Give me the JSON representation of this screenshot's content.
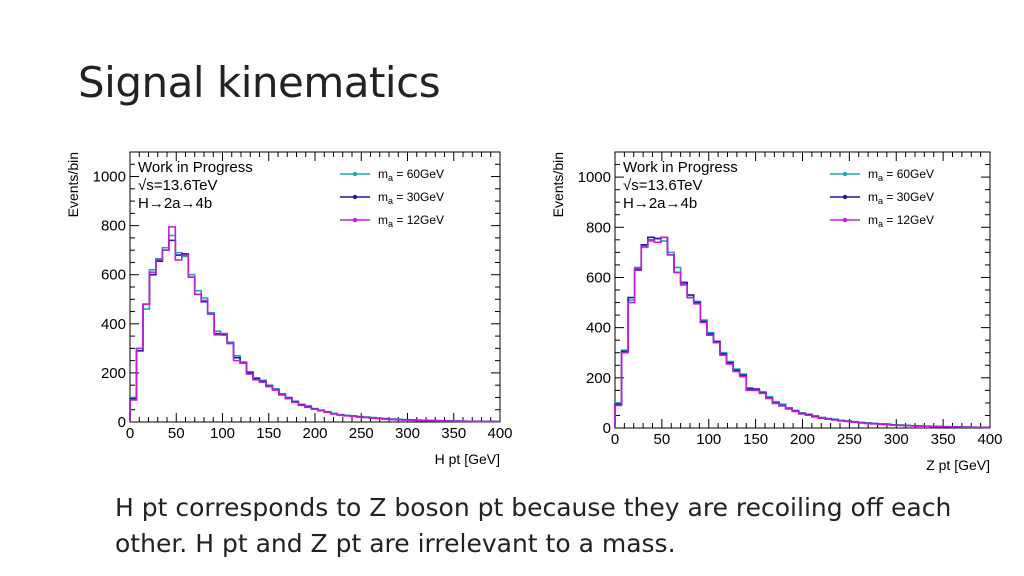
{
  "slide": {
    "title": "Signal kinematics",
    "caption": "H pt corresponds to Z boson pt because they are recoiling off each other. H pt and Z pt are irrelevant to a mass."
  },
  "colors": {
    "m60": "#1aa7b8",
    "m30": "#1a1aa8",
    "m12": "#c21ed6"
  },
  "chart_data": [
    {
      "type": "histogram",
      "xlabel": "H pt [GeV]",
      "ylabel": "Events/bin",
      "xlim": [
        0,
        400
      ],
      "ylim": [
        0,
        1100
      ],
      "xticks": [
        0,
        50,
        100,
        150,
        200,
        250,
        300,
        350,
        400
      ],
      "yticks": [
        0,
        200,
        400,
        600,
        800,
        1000
      ],
      "annotation": [
        "Work in Progress",
        "√s=13.6TeV",
        "H→2a→4b"
      ],
      "legend_position": "top-right",
      "bin_edges": [
        0,
        7,
        14,
        21,
        28,
        35,
        42,
        49,
        56,
        63,
        70,
        77,
        84,
        91,
        98,
        105,
        112,
        119,
        126,
        133,
        140,
        147,
        154,
        161,
        168,
        175,
        182,
        189,
        196,
        203,
        210,
        217,
        224,
        231,
        238,
        245,
        252,
        259,
        266,
        273,
        280,
        287,
        294,
        301,
        308,
        315,
        322,
        329,
        336,
        343,
        350,
        357,
        364,
        371,
        378,
        385,
        392,
        399
      ],
      "series": [
        {
          "name": "m_a = 60GeV",
          "legend_main": "m",
          "legend_sub": "a",
          "legend_rest": " = 60GeV",
          "color_key": "m60",
          "values": [
            100,
            300,
            460,
            620,
            665,
            710,
            760,
            690,
            675,
            600,
            535,
            505,
            445,
            370,
            360,
            325,
            270,
            245,
            205,
            180,
            170,
            150,
            135,
            115,
            100,
            85,
            72,
            65,
            55,
            48,
            42,
            35,
            30,
            27,
            25,
            22,
            20,
            18,
            15,
            14,
            12,
            10,
            10,
            9,
            8,
            7,
            6,
            6,
            5,
            5,
            4,
            4,
            3,
            3,
            2,
            2,
            2
          ]
        },
        {
          "name": "m_a = 30GeV",
          "legend_main": "m",
          "legend_sub": "a",
          "legend_rest": " = 30GeV",
          "color_key": "m30",
          "values": [
            95,
            290,
            480,
            600,
            655,
            700,
            740,
            680,
            685,
            590,
            520,
            490,
            440,
            360,
            355,
            320,
            262,
            240,
            200,
            176,
            166,
            146,
            132,
            112,
            97,
            82,
            70,
            63,
            53,
            47,
            41,
            34,
            29,
            26,
            24,
            21,
            19,
            17,
            15,
            13,
            11,
            10,
            9,
            8,
            7,
            6,
            6,
            5,
            5,
            4,
            4,
            3,
            3,
            3,
            2,
            2,
            2
          ]
        },
        {
          "name": "m_a = 12GeV",
          "legend_main": "m",
          "legend_sub": "a",
          "legend_rest": " = 12GeV",
          "color_key": "m12",
          "values": [
            90,
            300,
            480,
            610,
            660,
            700,
            795,
            660,
            680,
            590,
            520,
            495,
            440,
            355,
            360,
            320,
            250,
            240,
            195,
            172,
            162,
            144,
            130,
            110,
            95,
            80,
            68,
            60,
            52,
            46,
            40,
            33,
            28,
            25,
            23,
            20,
            18,
            16,
            14,
            12,
            10,
            9,
            8,
            7,
            6,
            6,
            5,
            5,
            4,
            4,
            3,
            3,
            3,
            2,
            2,
            2,
            2
          ]
        }
      ]
    },
    {
      "type": "histogram",
      "xlabel": "Z pt [GeV]",
      "ylabel": "Events/bin",
      "xlim": [
        0,
        400
      ],
      "ylim": [
        0,
        1100
      ],
      "xticks": [
        0,
        50,
        100,
        150,
        200,
        250,
        300,
        350,
        400
      ],
      "yticks": [
        0,
        200,
        400,
        600,
        800,
        1000
      ],
      "annotation": [
        "Work in Progress",
        "√s=13.6TeV",
        "H→2a→4b"
      ],
      "legend_position": "top-right",
      "bin_edges": [
        0,
        7,
        14,
        21,
        28,
        35,
        42,
        49,
        56,
        63,
        70,
        77,
        84,
        91,
        98,
        105,
        112,
        119,
        126,
        133,
        140,
        147,
        154,
        161,
        168,
        175,
        182,
        189,
        196,
        203,
        210,
        217,
        224,
        231,
        238,
        245,
        252,
        259,
        266,
        273,
        280,
        287,
        294,
        301,
        308,
        315,
        322,
        329,
        336,
        343,
        350,
        357,
        364,
        371,
        378,
        385,
        392,
        399
      ],
      "series": [
        {
          "name": "m_a = 60GeV",
          "legend_main": "m",
          "legend_sub": "a",
          "legend_rest": " = 60GeV",
          "color_key": "m60",
          "values": [
            100,
            310,
            510,
            640,
            720,
            745,
            755,
            745,
            700,
            640,
            575,
            520,
            505,
            430,
            380,
            340,
            300,
            265,
            235,
            215,
            160,
            150,
            145,
            125,
            105,
            95,
            80,
            70,
            60,
            55,
            48,
            42,
            38,
            35,
            30,
            28,
            25,
            22,
            20,
            18,
            16,
            15,
            13,
            12,
            10,
            9,
            8,
            8,
            7,
            6,
            6,
            5,
            5,
            4,
            4,
            3,
            3
          ]
        },
        {
          "name": "m_a = 30GeV",
          "legend_main": "m",
          "legend_sub": "a",
          "legend_rest": " = 30GeV",
          "color_key": "m30",
          "values": [
            95,
            305,
            520,
            630,
            730,
            760,
            755,
            760,
            690,
            620,
            580,
            530,
            500,
            425,
            375,
            345,
            295,
            260,
            230,
            210,
            155,
            155,
            140,
            120,
            100,
            90,
            78,
            68,
            58,
            53,
            46,
            40,
            36,
            33,
            29,
            27,
            24,
            21,
            19,
            17,
            15,
            14,
            12,
            11,
            10,
            9,
            8,
            7,
            6,
            6,
            5,
            5,
            4,
            4,
            3,
            3,
            3
          ]
        },
        {
          "name": "m_a = 12GeV",
          "legend_main": "m",
          "legend_sub": "a",
          "legend_rest": " = 12GeV",
          "color_key": "m12",
          "values": [
            90,
            300,
            500,
            635,
            725,
            750,
            740,
            760,
            690,
            620,
            570,
            520,
            495,
            420,
            370,
            340,
            290,
            255,
            225,
            205,
            150,
            150,
            138,
            118,
            98,
            88,
            76,
            66,
            56,
            51,
            44,
            39,
            35,
            32,
            28,
            26,
            23,
            20,
            18,
            16,
            14,
            13,
            11,
            10,
            9,
            8,
            7,
            7,
            6,
            5,
            5,
            4,
            4,
            3,
            3,
            3,
            2
          ]
        }
      ]
    }
  ]
}
